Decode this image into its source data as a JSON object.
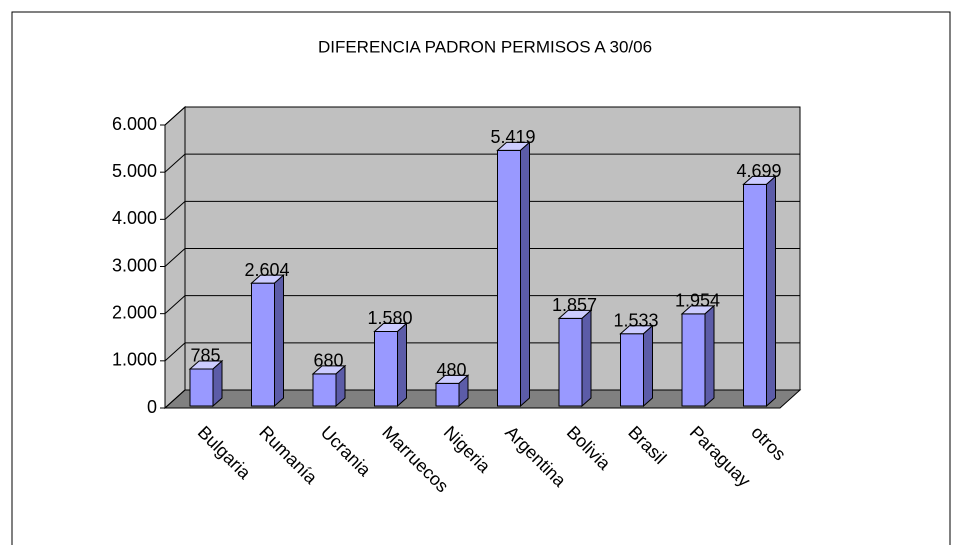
{
  "chart_data": {
    "type": "bar3d",
    "title": "DIFERENCIA PADRON PERMISOS A 30/06",
    "categories": [
      "Bulgaria",
      "Rumanía",
      "Ucrania",
      "Marruecos",
      "Nigeria",
      "Argentina",
      "Bolivia",
      "Brasil",
      "Paraguay",
      "otros"
    ],
    "values": [
      785,
      2604,
      680,
      1580,
      480,
      5419,
      1857,
      1533,
      1954,
      4699
    ],
    "value_labels": [
      "785",
      "2.604",
      "680",
      "1.580",
      "480",
      "5.419",
      "1.857",
      "1.533",
      "1.954",
      "4.699"
    ],
    "color": "#9999ff",
    "ylim": [
      0,
      6000
    ],
    "yticks": [
      0,
      {
        "value": 1000,
        "label": "1.000"
      },
      {
        "value": 2000,
        "label": "2.000"
      },
      {
        "value": 3000,
        "label": "3.000"
      },
      {
        "value": 4000,
        "label": "4.000"
      },
      {
        "value": 5000,
        "label": "5.000"
      },
      {
        "value": 6000,
        "label": "6.000"
      }
    ],
    "grid": true
  }
}
